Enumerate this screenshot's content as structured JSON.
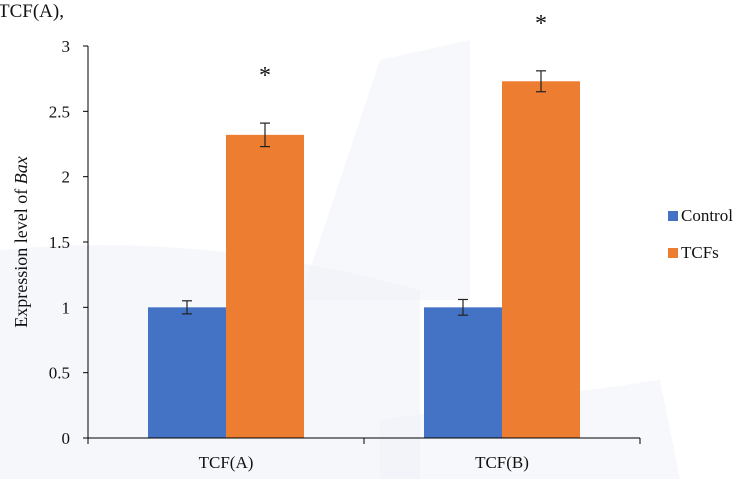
{
  "top_fragment": "TCF(A),",
  "chart_data": {
    "type": "bar",
    "categories": [
      "TCF(A)",
      "TCF(B)"
    ],
    "series": [
      {
        "name": "Control",
        "values": [
          1.0,
          1.0
        ],
        "errors": [
          0.05,
          0.06
        ],
        "color": "#4472c4"
      },
      {
        "name": "TCFs",
        "values": [
          2.32,
          2.73
        ],
        "errors": [
          0.09,
          0.08
        ],
        "color": "#ed7d31"
      }
    ],
    "significance": [
      "*",
      "*"
    ],
    "ylabel": "Expression level of ",
    "ylabel_italic": "Bax",
    "ylim": [
      0,
      3
    ],
    "yticks": [
      "0",
      "0.5",
      "1",
      "1.5",
      "2",
      "2.5",
      "3"
    ],
    "legend_position": "right",
    "grid": false
  }
}
